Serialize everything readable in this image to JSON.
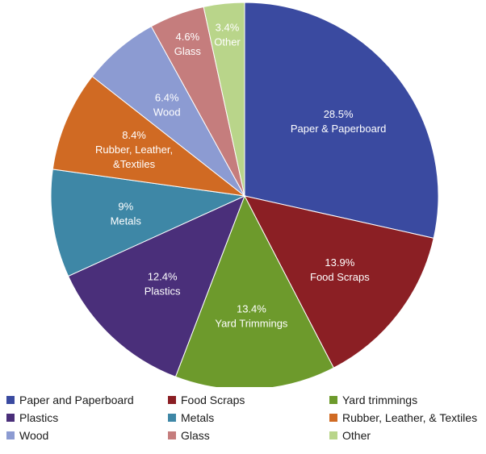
{
  "chart_data": {
    "type": "pie",
    "slices": [
      {
        "percent_label": "28.5%",
        "name": "Paper & Paperboard",
        "value": 28.5,
        "color": "#3a4aa0"
      },
      {
        "percent_label": "13.9%",
        "name": "Food Scraps",
        "value": 13.9,
        "color": "#8b1f24"
      },
      {
        "percent_label": "13.4%",
        "name": "Yard Trimmings",
        "value": 13.4,
        "color": "#6d9a2c"
      },
      {
        "percent_label": "12.4%",
        "name": "Plastics",
        "value": 12.4,
        "color": "#4a2f7a"
      },
      {
        "percent_label": "9%",
        "name": "Metals",
        "value": 9.0,
        "color": "#3e87a6"
      },
      {
        "percent_label": "8.4%",
        "name": "Rubber, Leather, &Textiles",
        "value": 8.4,
        "color": "#d06a23"
      },
      {
        "percent_label": "6.4%",
        "name": "Wood",
        "value": 6.4,
        "color": "#8c9bd2"
      },
      {
        "percent_label": "4.6%",
        "name": "Glass",
        "value": 4.6,
        "color": "#c57d7d"
      },
      {
        "percent_label": "3.4%",
        "name": "Other",
        "value": 3.4,
        "color": "#b9d58a"
      }
    ],
    "legend": [
      {
        "label": "Paper and Paperboard",
        "color": "#3a4aa0"
      },
      {
        "label": "Food Scraps",
        "color": "#8b1f24"
      },
      {
        "label": "Yard trimmings",
        "color": "#6d9a2c"
      },
      {
        "label": "Plastics",
        "color": "#4a2f7a"
      },
      {
        "label": "Metals",
        "color": "#3e87a6"
      },
      {
        "label": "Rubber, Leather, & Textiles",
        "color": "#d06a23"
      },
      {
        "label": "Wood",
        "color": "#8c9bd2"
      },
      {
        "label": "Glass",
        "color": "#c57d7d"
      },
      {
        "label": "Other",
        "color": "#b9d58a"
      }
    ],
    "legend_position": "bottom",
    "start_angle": "12 o'clock",
    "direction": "clockwise"
  }
}
